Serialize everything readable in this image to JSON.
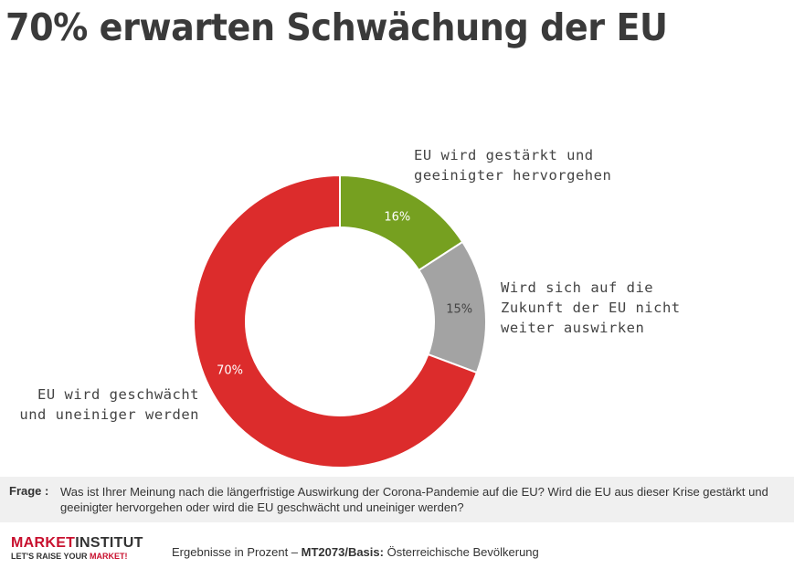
{
  "title": "70% erwarten Schwächung der EU",
  "chart_data": {
    "type": "pie",
    "variant": "donut",
    "title": "70% erwarten Schwächung der EU",
    "slices": [
      {
        "label": "EU wird gestärkt und geeinigter hervorgehen",
        "label_lines": [
          "EU wird gestärkt und",
          "geeinigter hervorgehen"
        ],
        "value": 16,
        "data_label": "16%",
        "color": "#76a020"
      },
      {
        "label": "Wird sich auf die Zukunft der EU nicht weiter auswirken",
        "label_lines": [
          "Wird sich auf die",
          "Zukunft der EU nicht",
          "weiter auswirken"
        ],
        "value": 15,
        "data_label": "15%",
        "color": "#a3a3a3"
      },
      {
        "label": "EU wird geschwächt und uneiniger werden",
        "label_lines": [
          "EU wird geschwächt",
          "und uneiniger werden"
        ],
        "value": 70,
        "data_label": "70%",
        "color": "#dc2c2c"
      }
    ],
    "start": "top",
    "direction": "clockwise"
  },
  "question": {
    "label": "Frage :",
    "text": "Was ist Ihrer Meinung nach die längerfristige Auswirkung der Corona-Pandemie auf die EU? Wird die EU aus dieser Krise gestärkt und geeinigter hervorgehen oder wird die EU geschwächt und uneiniger werden?"
  },
  "logo": {
    "brand_a": "MARKET",
    "brand_b": "INSTITUT",
    "tagline_a": "LET'S RAISE YOUR ",
    "tagline_b": "MARKET!"
  },
  "footer": {
    "prefix": "Ergebnisse in Prozent – ",
    "bold": "MT2073/Basis:",
    "suffix": " Österreichische Bevölkerung"
  }
}
